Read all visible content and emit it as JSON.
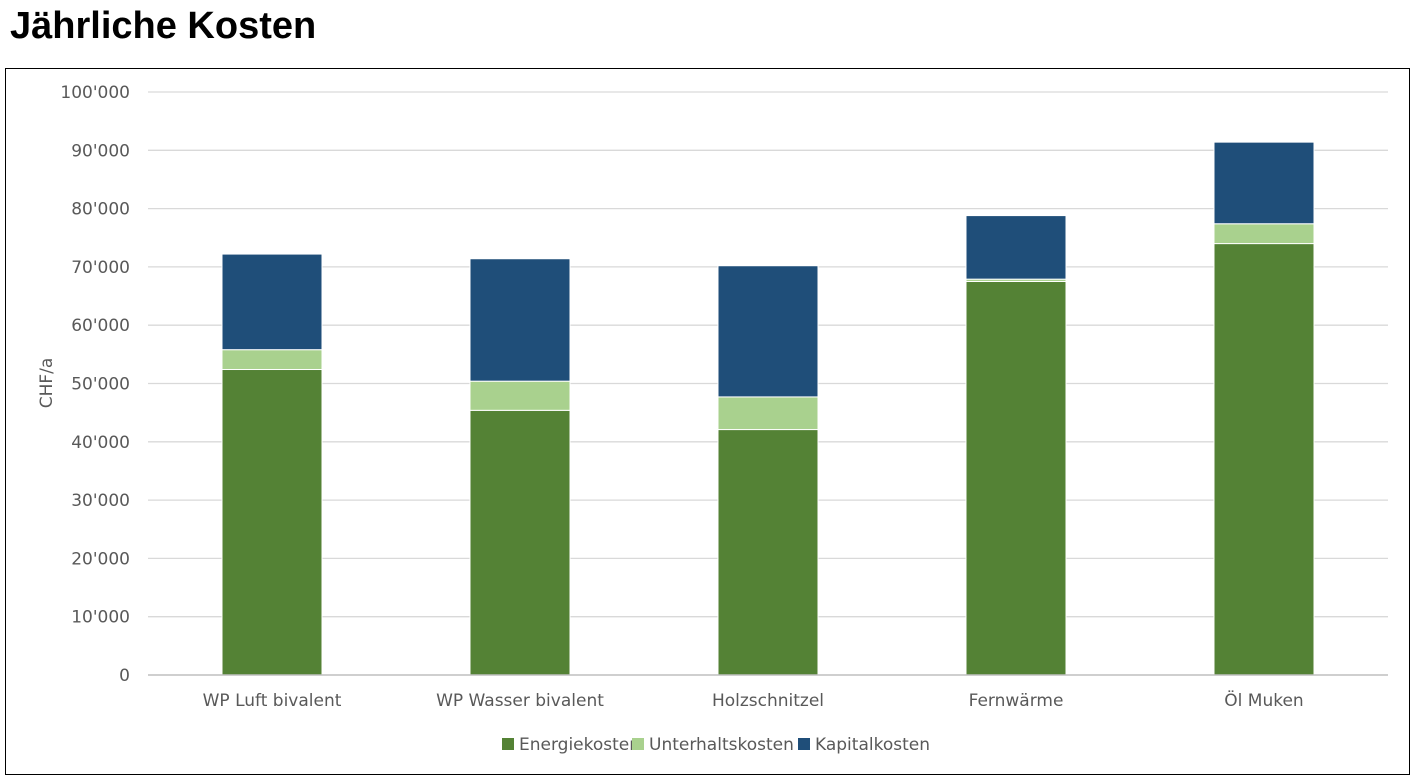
{
  "title": "Jährliche Kosten",
  "chart_data": {
    "type": "bar",
    "stacked": true,
    "title": "Jährliche Kosten",
    "xlabel": "",
    "ylabel": "CHF/a",
    "ylim": [
      0,
      100000
    ],
    "yticks": [
      0,
      10000,
      20000,
      30000,
      40000,
      50000,
      60000,
      70000,
      80000,
      90000,
      100000
    ],
    "ytick_labels": [
      "0",
      "10'000",
      "20'000",
      "30'000",
      "40'000",
      "50'000",
      "60'000",
      "70'000",
      "80'000",
      "90'000",
      "100'000"
    ],
    "categories": [
      "WP Luft bivalent",
      "WP Wasser bivalent",
      "Holzschnitzel",
      "Fernwärme",
      "Öl Muken"
    ],
    "series": [
      {
        "name": "Energiekosten",
        "color": "#548235",
        "values": [
          52400,
          45400,
          42100,
          67500,
          74000
        ]
      },
      {
        "name": "Unterhaltskosten",
        "color": "#a9d18e",
        "values": [
          3400,
          5000,
          5600,
          400,
          3400
        ]
      },
      {
        "name": "Kapitalkosten",
        "color": "#1f4e79",
        "values": [
          16400,
          21000,
          22500,
          10900,
          14000
        ]
      }
    ],
    "grid": true,
    "legend": "bottom"
  }
}
